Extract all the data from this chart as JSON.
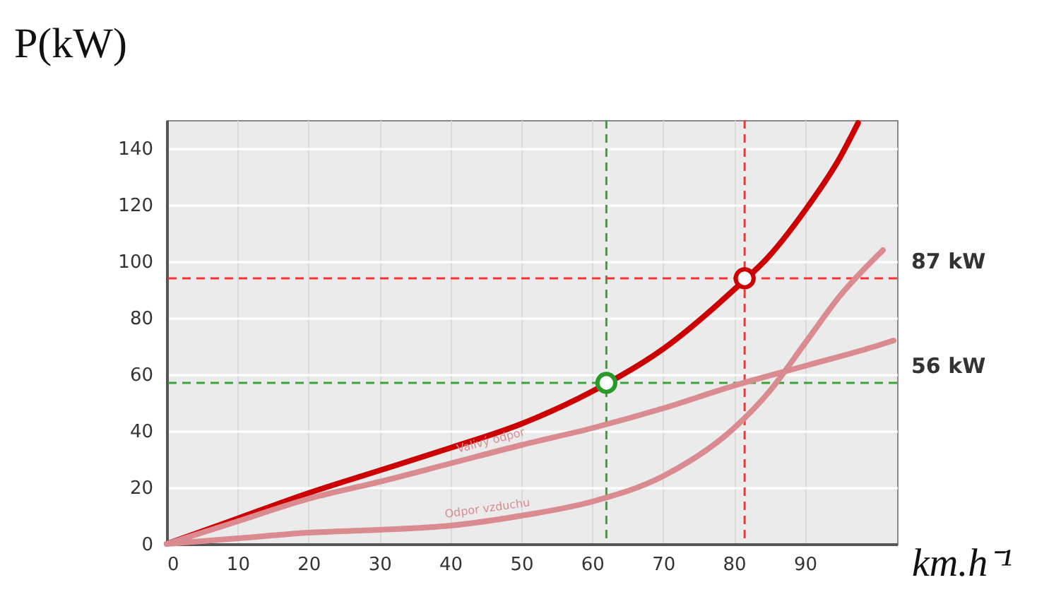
{
  "chart_data": {
    "type": "line",
    "title": "P(kW)",
    "xlabel": "km.h⁻¹",
    "xlim": [
      0,
      103
    ],
    "xticks": [
      0,
      10,
      20,
      30,
      40,
      50,
      60,
      70,
      80,
      90
    ],
    "ylim": [
      0,
      150
    ],
    "yticks": [
      0,
      20,
      40,
      60,
      80,
      100,
      120,
      140
    ],
    "grid": true,
    "marker": "none",
    "line_style": "solid",
    "series": [
      {
        "color": "#cc0000",
        "x": [
          0,
          10,
          20,
          30,
          40,
          50,
          60,
          70,
          80,
          85,
          90,
          95,
          97.5
        ],
        "values": [
          0,
          9,
          18,
          26,
          34,
          42.5,
          54,
          69,
          90,
          102,
          118,
          137,
          149
        ]
      },
      {
        "name": "Valivý odpor",
        "color": "#d98b90",
        "x": [
          0,
          10,
          20,
          30,
          40,
          50,
          60,
          70,
          80,
          90,
          100,
          102.5
        ],
        "values": [
          0,
          8,
          16,
          22,
          28.5,
          35,
          41,
          48,
          56,
          63,
          70,
          72
        ]
      },
      {
        "name": "Odpor vzduchu",
        "color": "#d98b90",
        "x": [
          0,
          10,
          20,
          30,
          40,
          50,
          60,
          70,
          80,
          85,
          90,
          95,
          101
        ],
        "values": [
          0,
          2,
          4,
          5,
          6.5,
          10,
          15,
          24,
          41,
          54,
          71,
          88,
          104
        ]
      },
      {
        "type": "scatter",
        "marker": "circle",
        "x": [
          62,
          81.5
        ],
        "values": [
          57,
          94
        ],
        "colors": [
          "#2a9a2a",
          "#cc0000"
        ]
      }
    ],
    "ref_lines": [
      {
        "axis": "y",
        "value": 57,
        "color": "#3aa33a",
        "line_style": "dashed",
        "label": "56 kW"
      },
      {
        "axis": "x",
        "value": 62,
        "color": "#3aa33a",
        "line_style": "dashed"
      },
      {
        "axis": "y",
        "value": 94,
        "color": "#ff3333",
        "line_style": "dashed",
        "label": "87 kW"
      },
      {
        "axis": "x",
        "value": 81.5,
        "color": "#ff3333",
        "line_style": "dashed"
      }
    ]
  }
}
